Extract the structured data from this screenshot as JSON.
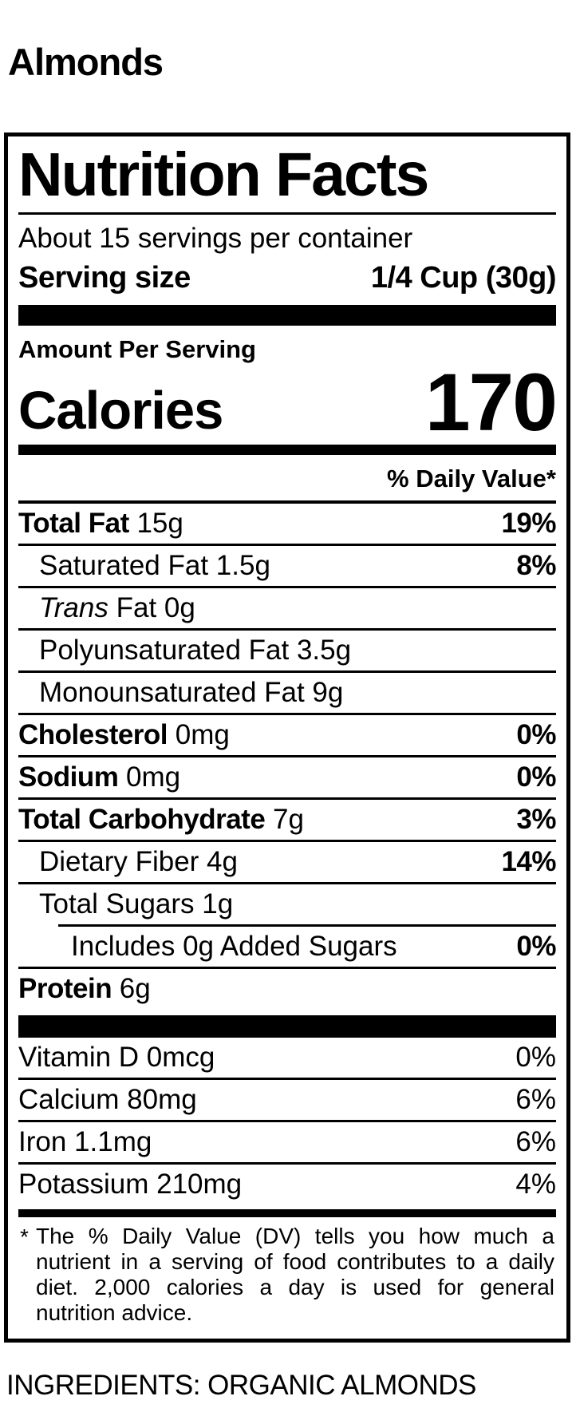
{
  "page": {
    "product_title": "Almonds",
    "ingredients": "INGREDIENTS: ORGANIC ALMONDS"
  },
  "colors": {
    "ink": "#000000",
    "background": "#ffffff"
  },
  "label": {
    "title": "Nutrition Facts",
    "servings_per_container": "About 15 servings per container",
    "serving_size_label": "Serving size",
    "serving_size_value": "1/4 Cup (30g)",
    "amount_per_serving": "Amount Per Serving",
    "calories_label": "Calories",
    "calories_value": "170",
    "daily_value_header": "% Daily Value*",
    "rows": [
      {
        "bold": "Total Fat",
        "rest": " 15g",
        "pct": "19%"
      },
      {
        "bold": "",
        "rest": "Saturated Fat 1.5g",
        "pct": "8%"
      },
      {
        "italic": "Trans",
        "rest": " Fat 0g",
        "pct": ""
      },
      {
        "bold": "",
        "rest": "Polyunsaturated Fat 3.5g",
        "pct": ""
      },
      {
        "bold": "",
        "rest": "Monounsaturated Fat 9g",
        "pct": ""
      },
      {
        "bold": "Cholesterol",
        "rest": " 0mg",
        "pct": "0%"
      },
      {
        "bold": "Sodium",
        "rest": " 0mg",
        "pct": "0%"
      },
      {
        "bold": "Total Carbohydrate",
        "rest": " 7g",
        "pct": "3%"
      },
      {
        "bold": "",
        "rest": "Dietary Fiber 4g",
        "pct": "14%"
      },
      {
        "bold": "",
        "rest": "Total Sugars 1g",
        "pct": ""
      },
      {
        "bold": "",
        "rest": "Includes 0g Added Sugars",
        "pct": "0%"
      },
      {
        "bold": "Protein",
        "rest": " 6g",
        "pct": ""
      }
    ],
    "vitamin_rows": [
      {
        "name": "Vitamin D 0mcg",
        "pct": "0%"
      },
      {
        "name": "Calcium 80mg",
        "pct": "6%"
      },
      {
        "name": "Iron 1.1mg",
        "pct": "6%"
      },
      {
        "name": "Potassium 210mg",
        "pct": "4%"
      }
    ],
    "footnote_marker": "*",
    "footnote": "The % Daily Value (DV) tells you how much a nutrient in a serving of food contributes to a daily diet. 2,000 calories a day is used for general nutrition advice."
  }
}
